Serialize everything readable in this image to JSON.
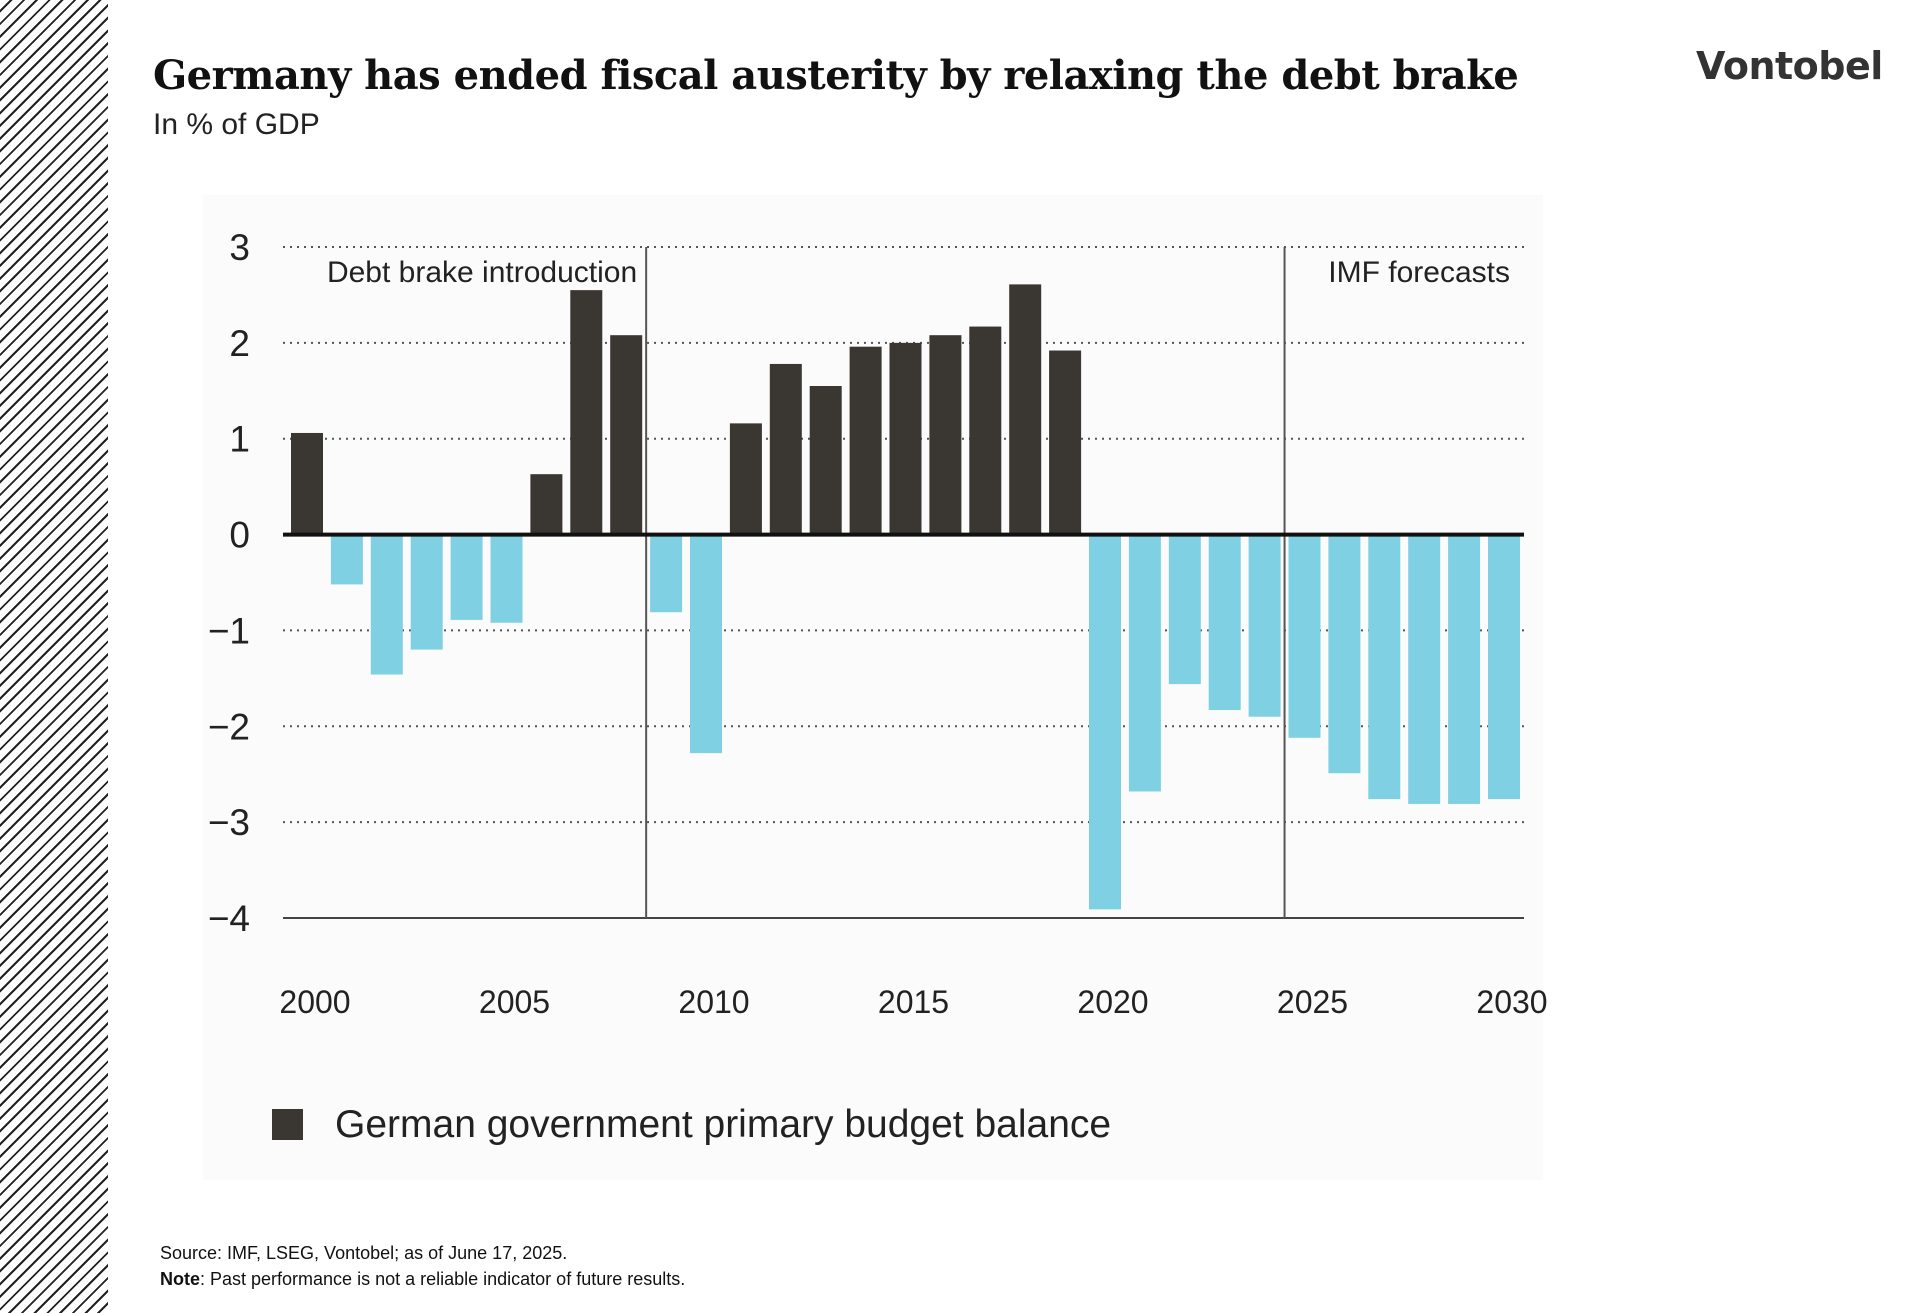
{
  "header": {
    "title": "Germany has ended fiscal austerity by relaxing the debt brake",
    "subtitle": "In % of GDP",
    "logo": "Vontobel"
  },
  "chart_data": {
    "type": "bar",
    "title": "Germany has ended fiscal austerity by relaxing the debt brake",
    "subtitle": "In % of GDP",
    "xlabel": "",
    "ylabel": "",
    "ylim": [
      -4,
      3
    ],
    "yticks": [
      "3",
      "2",
      "1",
      "0",
      "−1",
      "−2",
      "−3",
      "−4"
    ],
    "ytick_values": [
      3,
      2,
      1,
      0,
      -1,
      -2,
      -3,
      -4
    ],
    "xtick_labels": [
      "2000",
      "2005",
      "2010",
      "2015",
      "2020",
      "2025",
      "2030"
    ],
    "grid": "horizontal dotted",
    "categories": [
      2000,
      2001,
      2002,
      2003,
      2004,
      2005,
      2006,
      2007,
      2008,
      2009,
      2010,
      2011,
      2012,
      2013,
      2014,
      2015,
      2016,
      2017,
      2018,
      2019,
      2020,
      2021,
      2022,
      2023,
      2024,
      2025,
      2026,
      2027,
      2028,
      2029,
      2030
    ],
    "series": [
      {
        "name": "German government primary budget balance",
        "values": [
          1.06,
          -0.52,
          -1.46,
          -1.2,
          -0.89,
          -0.92,
          0.63,
          2.55,
          2.08,
          -0.81,
          -2.28,
          1.16,
          1.78,
          1.55,
          1.96,
          2.0,
          2.08,
          2.17,
          2.61,
          1.92,
          -3.91,
          -2.68,
          -1.56,
          -1.83,
          -1.9,
          -2.12,
          -2.49,
          -2.76,
          -2.81,
          -2.81,
          -2.76
        ]
      }
    ],
    "colors": {
      "positive": "#3a3632",
      "negative": "#7fd0e3"
    },
    "annotations": [
      {
        "text": "Debt brake introduction",
        "after_year": 2008
      },
      {
        "text": "IMF forecasts",
        "after_year": 2024
      }
    ],
    "legend": {
      "label": "German government primary budget balance",
      "placement": "bottom-left"
    }
  },
  "footer": {
    "source": "Source: IMF, LSEG, Vontobel; as of June 17, 2025.",
    "note_label": "Note",
    "note_text": ": Past performance is not a reliable indicator of future results."
  }
}
